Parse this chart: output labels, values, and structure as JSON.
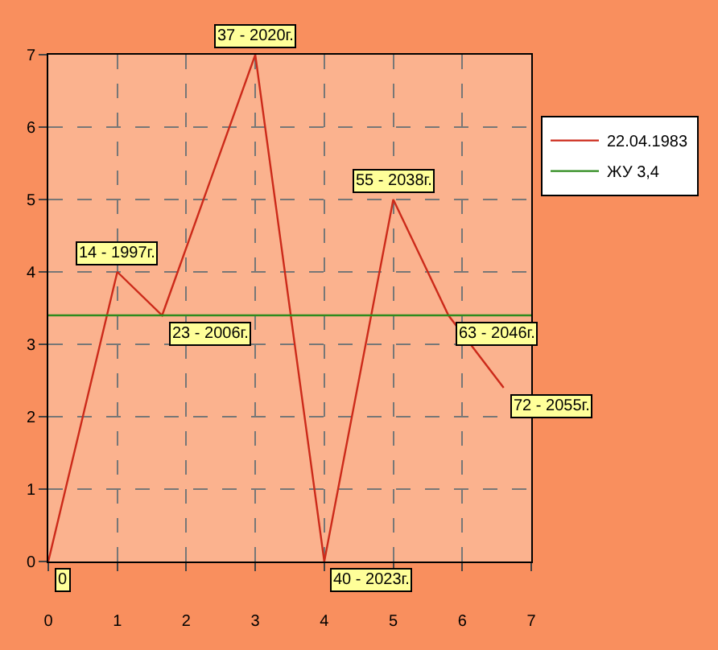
{
  "chart_data": {
    "type": "line",
    "x": [
      0,
      1,
      1.65,
      3,
      4,
      5,
      5.8,
      6.6
    ],
    "xlim": [
      0,
      7
    ],
    "ylim": [
      0,
      7
    ],
    "xticks": [
      0,
      1,
      2,
      3,
      4,
      5,
      6,
      7
    ],
    "yticks": [
      0,
      1,
      2,
      3,
      4,
      5,
      6,
      7
    ],
    "grid": true,
    "legend": "top right",
    "marker": "none",
    "line_style": "solid",
    "series": [
      {
        "name": "22.04.1983",
        "color": "#cc2a1a",
        "values": [
          0,
          4,
          3.4,
          7,
          0,
          5,
          3.4,
          2.4
        ]
      }
    ],
    "ref_lines": [
      {
        "axis": "y",
        "value": 3.4,
        "label": "ЖУ 3,4",
        "color": "#2e8b1e"
      }
    ],
    "annotations": [
      {
        "text": "0",
        "x": 0,
        "y": 0
      },
      {
        "text": "14 - 1997г.",
        "x": 1,
        "y": 4
      },
      {
        "text": "23 - 2006г.",
        "x": 1.65,
        "y": 3.4
      },
      {
        "text": "37 - 2020г.",
        "x": 3,
        "y": 7
      },
      {
        "text": "40 - 2023г.",
        "x": 4,
        "y": 0
      },
      {
        "text": "55 - 2038г.",
        "x": 5,
        "y": 5
      },
      {
        "text": "63 - 2046г.",
        "x": 5.8,
        "y": 3.4
      },
      {
        "text": "72 - 2055г.",
        "x": 6.6,
        "y": 2.4
      }
    ]
  }
}
